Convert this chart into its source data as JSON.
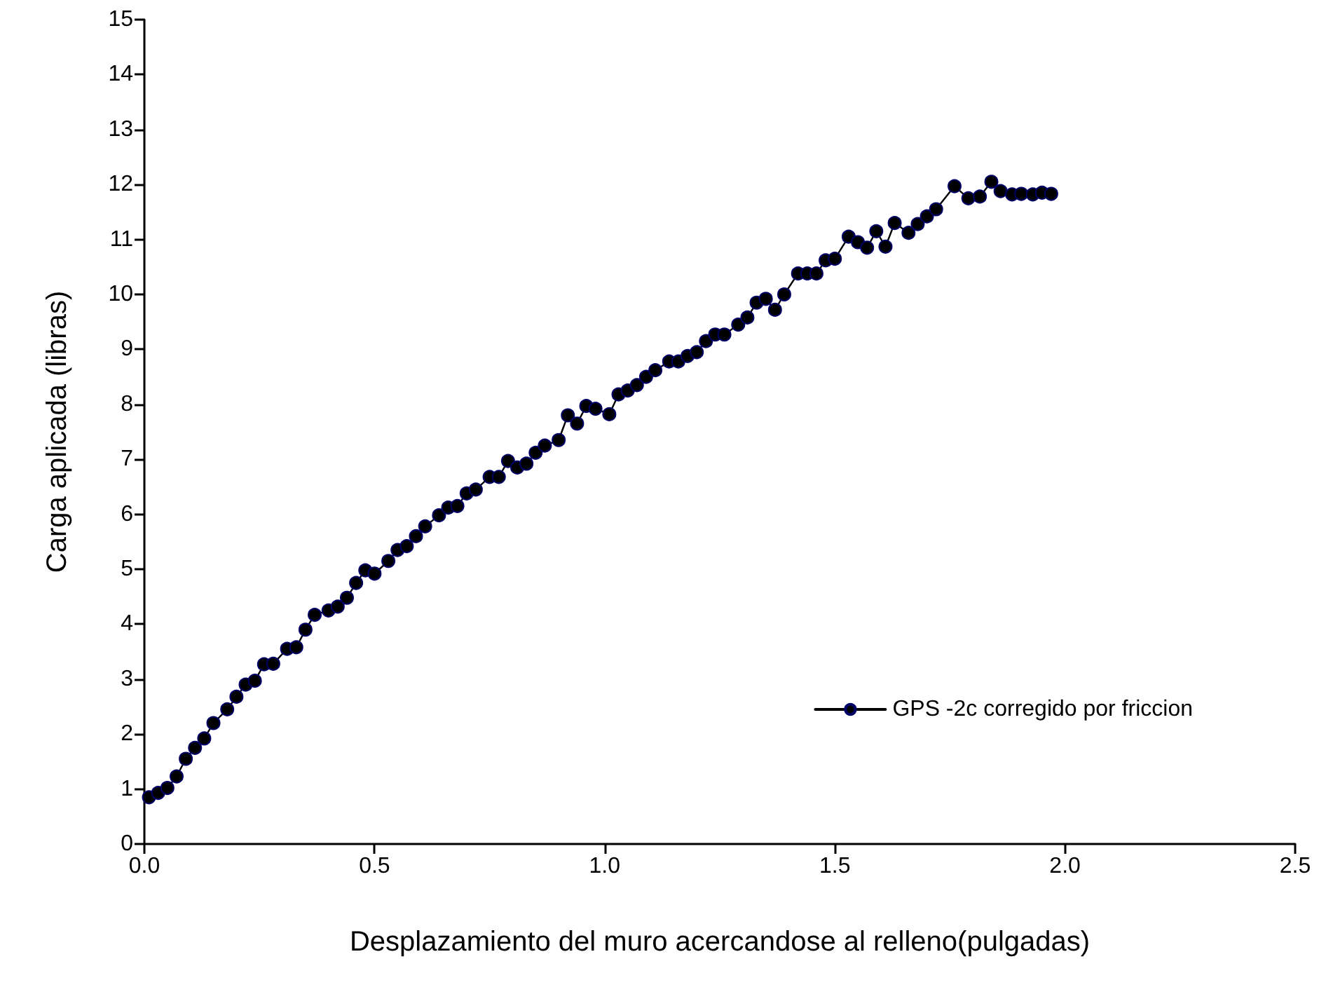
{
  "chart_data": {
    "type": "line",
    "xlabel": "Desplazamiento del muro acercandose al relleno(pulgadas)",
    "ylabel": "Carga aplicada (libras)",
    "xlim": [
      0,
      2.5
    ],
    "xticks": [
      {
        "value": 0,
        "label": "0.0"
      },
      {
        "value": 0.5,
        "label": "0.5"
      },
      {
        "value": 1,
        "label": "1.0"
      },
      {
        "value": 1.5,
        "label": "1.5"
      },
      {
        "value": 2,
        "label": "2.0"
      },
      {
        "value": 2.5,
        "label": "2.5"
      }
    ],
    "ylim": [
      0,
      15
    ],
    "yticks": [
      0,
      1,
      2,
      3,
      4,
      5,
      6,
      7,
      8,
      9,
      10,
      11,
      12,
      13,
      14,
      15
    ],
    "grid": false,
    "legend": "bottom right",
    "marker": "circle",
    "line_style": "solid",
    "series": [
      {
        "name": "GPS -2c corregido por friccion",
        "color": "#000000",
        "x": [
          0.01,
          0.03,
          0.05,
          0.07,
          0.09,
          0.11,
          0.13,
          0.15,
          0.18,
          0.2,
          0.22,
          0.24,
          0.26,
          0.28,
          0.31,
          0.33,
          0.35,
          0.37,
          0.4,
          0.42,
          0.44,
          0.46,
          0.48,
          0.5,
          0.53,
          0.55,
          0.57,
          0.59,
          0.61,
          0.64,
          0.66,
          0.68,
          0.7,
          0.72,
          0.75,
          0.77,
          0.79,
          0.81,
          0.83,
          0.85,
          0.87,
          0.9,
          0.92,
          0.94,
          0.96,
          0.98,
          1.01,
          1.03,
          1.05,
          1.07,
          1.09,
          1.11,
          1.14,
          1.16,
          1.18,
          1.2,
          1.22,
          1.24,
          1.26,
          1.29,
          1.31,
          1.33,
          1.35,
          1.37,
          1.39,
          1.42,
          1.44,
          1.46,
          1.48,
          1.5,
          1.53,
          1.55,
          1.57,
          1.59,
          1.61,
          1.63,
          1.66,
          1.68,
          1.7,
          1.72,
          1.76,
          1.79,
          1.815,
          1.84,
          1.86,
          1.885,
          1.905,
          1.93,
          1.95,
          1.97
        ],
        "values": [
          0.85,
          0.93,
          1.02,
          1.23,
          1.55,
          1.75,
          1.92,
          2.2,
          2.45,
          2.68,
          2.9,
          2.97,
          3.27,
          3.28,
          3.55,
          3.58,
          3.9,
          4.17,
          4.25,
          4.32,
          4.48,
          4.75,
          4.98,
          4.92,
          5.15,
          5.35,
          5.42,
          5.6,
          5.78,
          5.98,
          6.12,
          6.15,
          6.38,
          6.45,
          6.68,
          6.68,
          6.97,
          6.85,
          6.92,
          7.12,
          7.25,
          7.35,
          7.8,
          7.65,
          7.97,
          7.92,
          7.82,
          8.18,
          8.25,
          8.35,
          8.5,
          8.62,
          8.78,
          8.78,
          8.88,
          8.95,
          9.15,
          9.27,
          9.27,
          9.45,
          9.58,
          9.85,
          9.92,
          9.72,
          10.0,
          10.38,
          10.38,
          10.38,
          10.62,
          10.65,
          11.05,
          10.95,
          10.85,
          11.15,
          10.87,
          11.3,
          11.12,
          11.28,
          11.42,
          11.55,
          11.97,
          11.75,
          11.78,
          12.05,
          11.88,
          11.82,
          11.83,
          11.82,
          11.85,
          11.83
        ]
      }
    ]
  }
}
